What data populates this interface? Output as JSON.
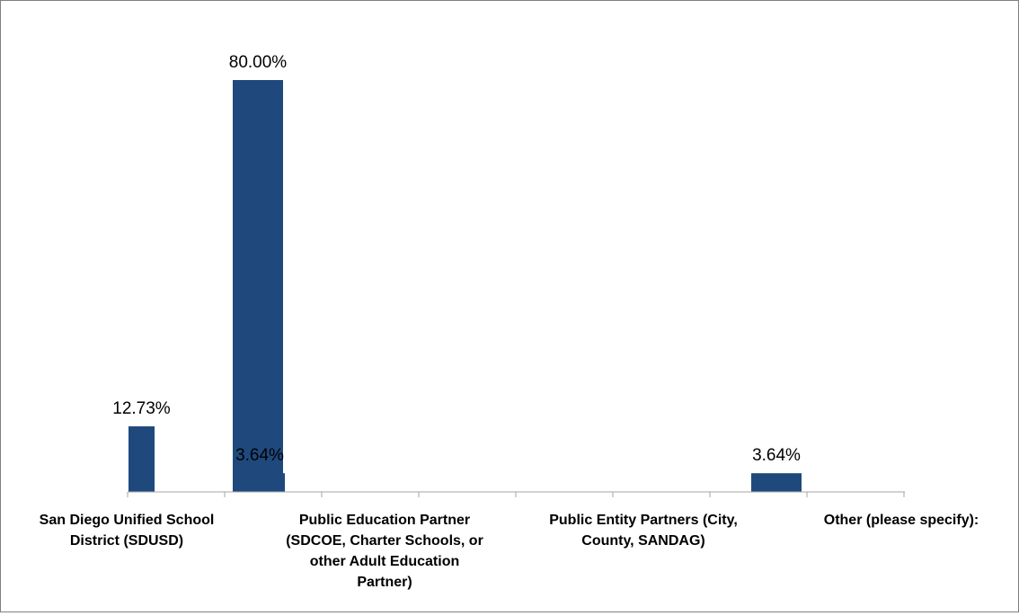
{
  "chart_data": {
    "type": "bar",
    "title": "",
    "xlabel": "",
    "ylabel": "",
    "categories": [
      "San Diego Unified School District (SDUSD)",
      "Public Education Partner (SDCOE, Charter Schools, or other Adult Education Partner)",
      "Public Entity Partners (City, County, SANDAG)",
      "Other (please specify):"
    ],
    "category_label_lines": [
      [
        "San Diego Unified School",
        "District (SDUSD)"
      ],
      [
        "Public Education Partner",
        "(SDCOE, Charter Schools, or",
        "other Adult Education",
        "Partner)"
      ],
      [
        "Public Entity Partners (City,",
        "County, SANDAG)"
      ],
      [
        "Other (please specify):"
      ]
    ],
    "series": [
      {
        "values": [
          12.73,
          3.64,
          0,
          3.64
        ],
        "labels": [
          "12.73%",
          "3.64%",
          "",
          "3.64%"
        ],
        "color": "#1f497d"
      },
      {
        "values": [
          80.0,
          0,
          0,
          0
        ],
        "labels": [
          "80.00%",
          "",
          "",
          ""
        ],
        "color": "#1f497d"
      }
    ],
    "ylim": [
      0,
      85
    ],
    "grid": false,
    "legend": "none",
    "axis_color": "#a6a6a6"
  }
}
